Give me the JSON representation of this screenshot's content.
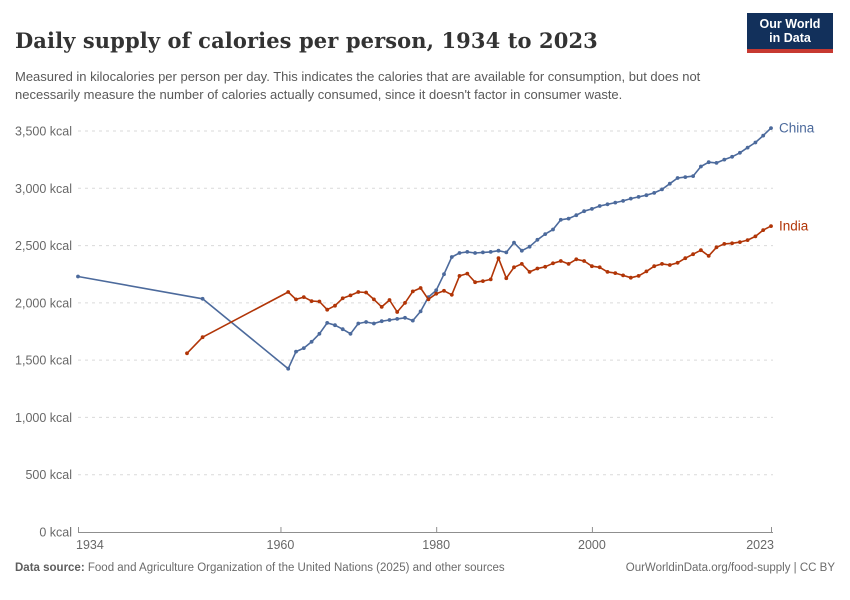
{
  "header": {
    "title": "Daily supply of calories per person, 1934 to 2023",
    "subtitle": "Measured in kilocalories per person per day. This indicates the calories that are available for consumption, but does not necessarily measure the number of calories actually consumed, since it doesn't factor in consumer waste."
  },
  "logo": {
    "line1": "Our World",
    "line2": "in Data",
    "bg_color": "#12305B",
    "accent_color": "#C73931"
  },
  "footer": {
    "source_label": "Data source:",
    "source_text": "Food and Agriculture Organization of the United Nations (2025) and other sources",
    "link_text": "OurWorldinData.org/food-supply | CC BY"
  },
  "chart_data": {
    "type": "line",
    "title": "Daily supply of calories per person, 1934 to 2023",
    "unit": "kcal",
    "xlim": [
      1934,
      2023
    ],
    "ylim": [
      0,
      3500
    ],
    "x_ticks": [
      1934,
      1960,
      1980,
      2000,
      2023
    ],
    "y_ticks": [
      0,
      500,
      1000,
      1500,
      2000,
      2500,
      3000,
      3500
    ],
    "grid": "dashed-horizontal",
    "legend_position": "end-of-line-labels",
    "colors": {
      "axis": "#8f8f8f",
      "grid": "#dadada",
      "tick_text": "#686868"
    },
    "series": [
      {
        "name": "China",
        "color": "#4C6A9C",
        "points": [
          [
            1934,
            2230
          ],
          [
            1950,
            2035
          ],
          [
            1961,
            1425
          ],
          [
            1962,
            1575
          ],
          [
            1963,
            1605
          ],
          [
            1964,
            1660
          ],
          [
            1965,
            1730
          ],
          [
            1966,
            1825
          ],
          [
            1967,
            1805
          ],
          [
            1968,
            1770
          ],
          [
            1969,
            1730
          ],
          [
            1970,
            1820
          ],
          [
            1971,
            1833
          ],
          [
            1972,
            1820
          ],
          [
            1973,
            1840
          ],
          [
            1974,
            1850
          ],
          [
            1975,
            1860
          ],
          [
            1976,
            1870
          ],
          [
            1977,
            1845
          ],
          [
            1978,
            1925
          ],
          [
            1979,
            2050
          ],
          [
            1980,
            2110
          ],
          [
            1981,
            2250
          ],
          [
            1982,
            2400
          ],
          [
            1983,
            2435
          ],
          [
            1984,
            2445
          ],
          [
            1985,
            2435
          ],
          [
            1986,
            2440
          ],
          [
            1987,
            2445
          ],
          [
            1988,
            2455
          ],
          [
            1989,
            2440
          ],
          [
            1990,
            2525
          ],
          [
            1991,
            2455
          ],
          [
            1992,
            2490
          ],
          [
            1993,
            2550
          ],
          [
            1994,
            2600
          ],
          [
            1995,
            2640
          ],
          [
            1996,
            2725
          ],
          [
            1997,
            2735
          ],
          [
            1998,
            2765
          ],
          [
            1999,
            2800
          ],
          [
            2000,
            2820
          ],
          [
            2001,
            2845
          ],
          [
            2002,
            2860
          ],
          [
            2003,
            2875
          ],
          [
            2004,
            2890
          ],
          [
            2005,
            2910
          ],
          [
            2006,
            2925
          ],
          [
            2007,
            2940
          ],
          [
            2008,
            2960
          ],
          [
            2009,
            2990
          ],
          [
            2010,
            3040
          ],
          [
            2011,
            3090
          ],
          [
            2012,
            3098
          ],
          [
            2013,
            3106
          ],
          [
            2014,
            3190
          ],
          [
            2015,
            3228
          ],
          [
            2016,
            3222
          ],
          [
            2017,
            3250
          ],
          [
            2018,
            3275
          ],
          [
            2019,
            3310
          ],
          [
            2020,
            3355
          ],
          [
            2021,
            3400
          ],
          [
            2022,
            3460
          ],
          [
            2023,
            3525
          ]
        ]
      },
      {
        "name": "India",
        "color": "#B13507",
        "points": [
          [
            1948,
            1560
          ],
          [
            1950,
            1700
          ],
          [
            1961,
            2095
          ],
          [
            1962,
            2030
          ],
          [
            1963,
            2050
          ],
          [
            1964,
            2015
          ],
          [
            1965,
            2012
          ],
          [
            1966,
            1940
          ],
          [
            1967,
            1975
          ],
          [
            1968,
            2040
          ],
          [
            1969,
            2065
          ],
          [
            1970,
            2095
          ],
          [
            1971,
            2090
          ],
          [
            1972,
            2030
          ],
          [
            1973,
            1965
          ],
          [
            1974,
            2025
          ],
          [
            1975,
            1920
          ],
          [
            1976,
            2000
          ],
          [
            1977,
            2100
          ],
          [
            1978,
            2130
          ],
          [
            1979,
            2030
          ],
          [
            1980,
            2080
          ],
          [
            1981,
            2105
          ],
          [
            1982,
            2070
          ],
          [
            1983,
            2235
          ],
          [
            1984,
            2255
          ],
          [
            1985,
            2180
          ],
          [
            1986,
            2190
          ],
          [
            1987,
            2205
          ],
          [
            1988,
            2390
          ],
          [
            1989,
            2215
          ],
          [
            1990,
            2310
          ],
          [
            1991,
            2340
          ],
          [
            1992,
            2270
          ],
          [
            1993,
            2300
          ],
          [
            1994,
            2315
          ],
          [
            1995,
            2345
          ],
          [
            1996,
            2365
          ],
          [
            1997,
            2340
          ],
          [
            1998,
            2380
          ],
          [
            1999,
            2365
          ],
          [
            2000,
            2320
          ],
          [
            2001,
            2310
          ],
          [
            2002,
            2270
          ],
          [
            2003,
            2260
          ],
          [
            2004,
            2240
          ],
          [
            2005,
            2220
          ],
          [
            2006,
            2235
          ],
          [
            2007,
            2275
          ],
          [
            2008,
            2320
          ],
          [
            2009,
            2340
          ],
          [
            2010,
            2330
          ],
          [
            2011,
            2350
          ],
          [
            2012,
            2390
          ],
          [
            2013,
            2425
          ],
          [
            2014,
            2460
          ],
          [
            2015,
            2410
          ],
          [
            2016,
            2485
          ],
          [
            2017,
            2515
          ],
          [
            2018,
            2520
          ],
          [
            2019,
            2530
          ],
          [
            2020,
            2548
          ],
          [
            2021,
            2580
          ],
          [
            2022,
            2635
          ],
          [
            2023,
            2670
          ]
        ]
      }
    ]
  }
}
